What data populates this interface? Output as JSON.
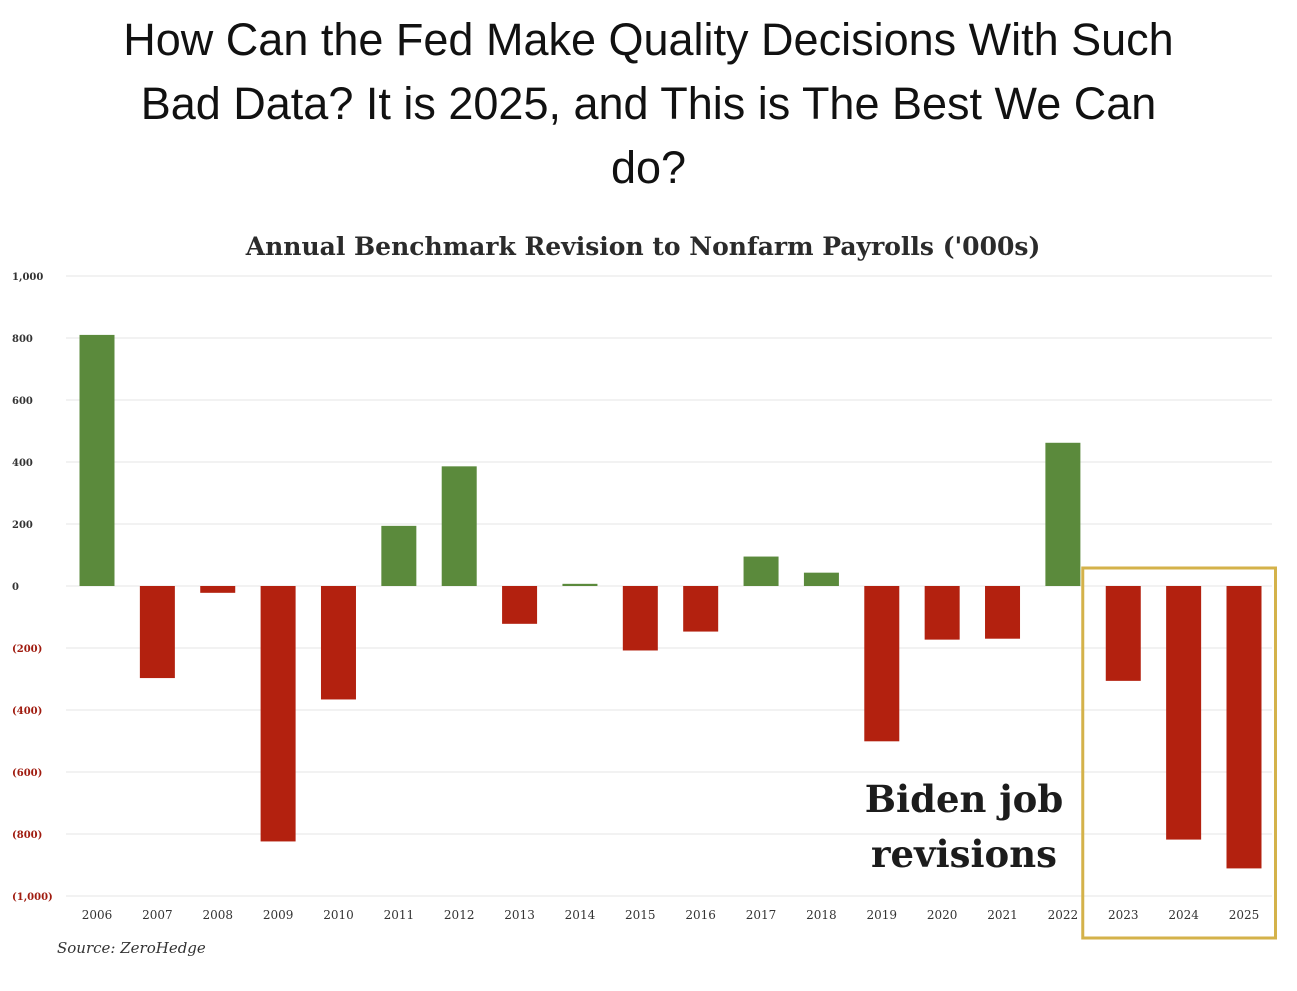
{
  "headline": {
    "line1": "How Can the Fed Make Quality Decisions With Such",
    "line2": "Bad Data?  It is 2025, and This is The Best We Can",
    "line3": "do?"
  },
  "chart_data": {
    "type": "bar",
    "title": "Annual Benchmark Revision to Nonfarm Payrolls ('000s)",
    "categories": [
      "2006",
      "2007",
      "2008",
      "2009",
      "2010",
      "2011",
      "2012",
      "2013",
      "2014",
      "2015",
      "2016",
      "2017",
      "2018",
      "2019",
      "2020",
      "2021",
      "2022",
      "2023",
      "2024",
      "2025"
    ],
    "values": [
      810,
      -297,
      -22,
      -824,
      -366,
      194,
      386,
      -122,
      7,
      -208,
      -147,
      95,
      43,
      -501,
      -173,
      -170,
      462,
      -306,
      -818,
      -911
    ],
    "ylim": [
      -1000,
      1000
    ],
    "yticks": [
      1000,
      800,
      600,
      400,
      200,
      0,
      -200,
      -400,
      -600,
      -800,
      -1000
    ],
    "ytick_labels": [
      "1,000",
      "800",
      "600",
      "400",
      "200",
      "0",
      "(200)",
      "(400)",
      "(600)",
      "(800)",
      "(1,000)"
    ],
    "xlabel": "",
    "ylabel": "",
    "grid": true,
    "source": "Source: ZeroHedge",
    "annotation": {
      "line1": "Biden job",
      "line2": "revisions",
      "highlight_categories": [
        "2023",
        "2024",
        "2025"
      ]
    }
  },
  "colors": {
    "positive": "#5b8a3c",
    "negative": "#b3210f",
    "highlight_border": "#d4b24a",
    "grid": "#e6e6e6",
    "tick_positive": "#333333",
    "tick_negative": "#a01c10"
  }
}
